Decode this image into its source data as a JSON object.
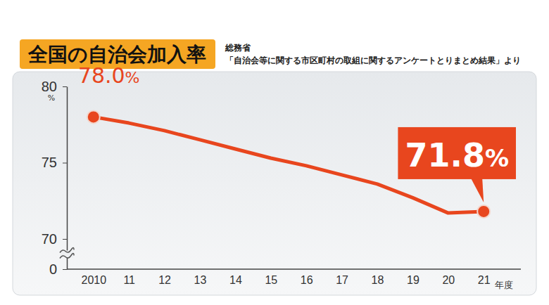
{
  "chart_data": {
    "type": "line",
    "title": "全国の自治会加入率",
    "subtitle": [
      "総務省",
      "「自治会等に関する市区町村の取組に関するアンケートとりまとめ結果」より"
    ],
    "ylabel": "%",
    "xlabel": "年度",
    "categories": [
      "2010",
      "11",
      "12",
      "13",
      "14",
      "15",
      "16",
      "17",
      "18",
      "19",
      "20",
      "21"
    ],
    "values": [
      78.0,
      77.6,
      77.1,
      76.5,
      75.9,
      75.3,
      74.8,
      74.2,
      73.6,
      72.7,
      71.7,
      71.8
    ],
    "color": "#e8461e",
    "ylim": [
      0,
      80
    ],
    "yticks": [
      0,
      70,
      75,
      80
    ],
    "grid": false,
    "annotations": [
      {
        "category": "2010",
        "text": "78.0%"
      },
      {
        "category": "21",
        "text": "71.8%"
      }
    ]
  }
}
